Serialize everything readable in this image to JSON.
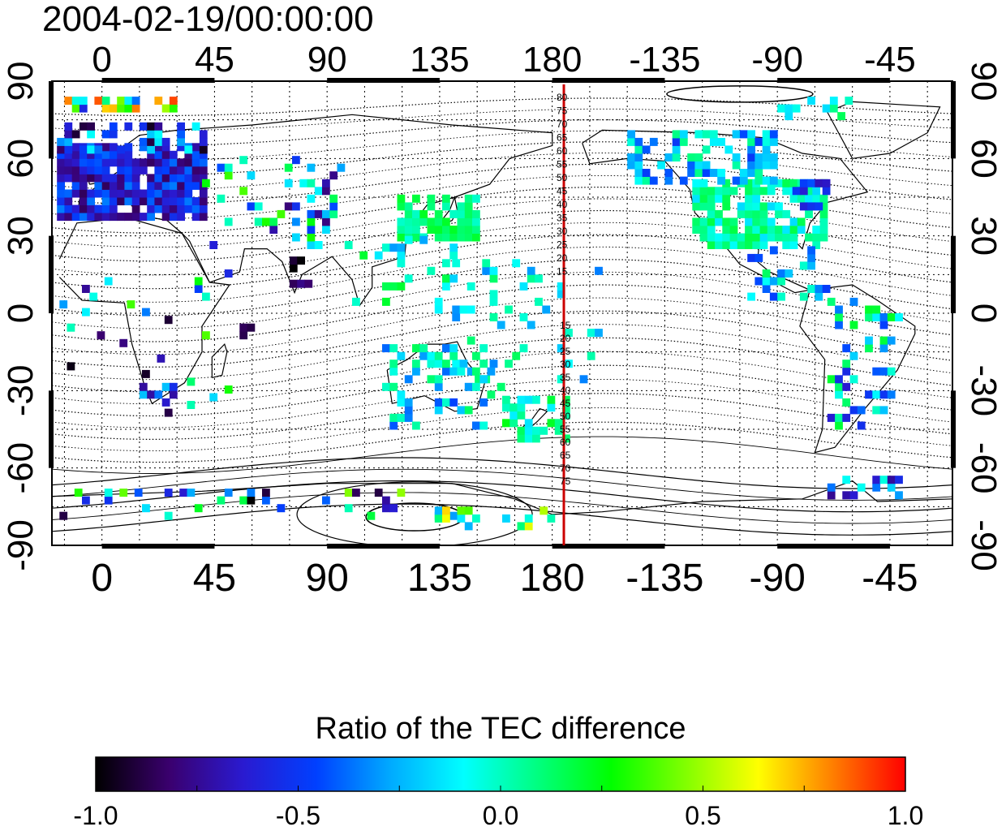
{
  "timestamp": "2004-02-19/00:00:00",
  "map": {
    "lon_ticks": [
      "0",
      "45",
      "90",
      "135",
      "180",
      "-135",
      "-90",
      "-45"
    ],
    "lat_ticks": [
      "90",
      "60",
      "30",
      "0",
      "-30",
      "-60",
      "-90"
    ],
    "contour_labels_north": [
      "80",
      "75",
      "70",
      "65",
      "60",
      "55",
      "50",
      "45",
      "40",
      "35",
      "30",
      "25",
      "20",
      "15"
    ],
    "contour_labels_south": [
      "15",
      "20",
      "25",
      "30",
      "35",
      "40",
      "45",
      "50",
      "55",
      "60",
      "65",
      "70",
      "75"
    ],
    "meridian_line_color": "#cc0000",
    "land_outline_color": "#000000"
  },
  "colorbar": {
    "title": "Ratio of the TEC difference",
    "tick_labels": [
      "-1.0",
      "-0.5",
      "0.0",
      "0.5",
      "1.0"
    ],
    "range": [
      -1.0,
      1.0
    ],
    "colormap_stops": [
      "#000000",
      "#3a006e",
      "#2a1ad0",
      "#0040ff",
      "#00aaff",
      "#00ffff",
      "#00ff80",
      "#00ff00",
      "#80ff00",
      "#ffff00",
      "#ff8000",
      "#ff0000"
    ]
  },
  "chart_data": {
    "type": "heatmap",
    "title": "2004-02-19/00:00:00",
    "xlabel": "",
    "ylabel": "",
    "xlim": [
      -20,
      340
    ],
    "ylim": [
      -90,
      90
    ],
    "colorbar_label": "Ratio of the TEC difference",
    "vmin": -1.0,
    "vmax": 1.0,
    "regions": [
      {
        "lon_range": [
          -20,
          40
        ],
        "lat_range": [
          35,
          70
        ],
        "value": -0.6
      },
      {
        "lon_range": [
          100,
          150
        ],
        "lat_range": [
          20,
          45
        ],
        "value": 0.1
      },
      {
        "lon_range": [
          235,
          290
        ],
        "lat_range": [
          25,
          50
        ],
        "value": 0.0
      },
      {
        "lon_range": [
          210,
          260
        ],
        "lat_range": [
          50,
          70
        ],
        "value": -0.2
      },
      {
        "lon_range": [
          160,
          185
        ],
        "lat_range": [
          -50,
          -35
        ],
        "value": 0.1
      },
      {
        "lon_range": [
          110,
          155
        ],
        "lat_range": [
          -45,
          -10
        ],
        "value": -0.1
      }
    ]
  }
}
